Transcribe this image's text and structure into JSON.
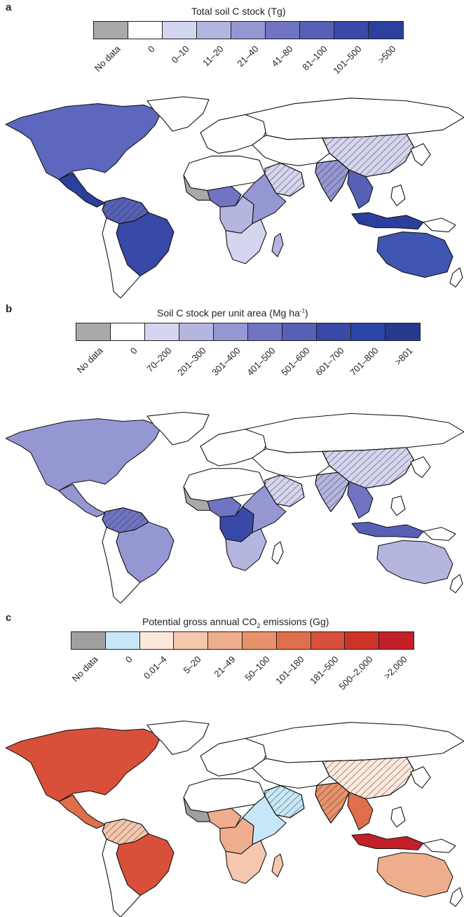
{
  "panels": [
    {
      "letter": "a",
      "title": "Total soil C stock (Tg)",
      "legend": {
        "labels": [
          "No data",
          "0",
          "0–10",
          "11–20",
          "21–40",
          "41–80",
          "81–100",
          "101–500",
          ">500"
        ],
        "colors": [
          "#a9a9a9",
          "#ffffff",
          "#d4d5ee",
          "#b4b6e0",
          "#9597d3",
          "#7074c3",
          "#5660b6",
          "#3949a8",
          "#2b3f9d"
        ]
      },
      "regions": {
        "north-america": "#5c67bd",
        "central-america": "#2b3f9d",
        "northern-south-america": "#5660b6",
        "brazil": "#3949a8",
        "west-africa": "#a9a9a9",
        "nigeria-region": "#7074c3",
        "central-africa": "#b4b6e0",
        "east-africa": "#9597d3",
        "madagascar": "#b4b6e0",
        "southern-africa": "#d4d5ee",
        "arabia": "#d4d5ee",
        "india": "#9597d3",
        "china": "#d4d5ee",
        "southeast-asia": "#5660b6",
        "indonesia": "#2b3f9d",
        "australia": "#3f55b0"
      }
    },
    {
      "letter": "b",
      "title": "Soil C stock per unit area (Mg ha",
      "title_sup": "-1",
      "title_end": ")",
      "legend": {
        "labels": [
          "No data",
          "0",
          "70–200",
          "201–300",
          "301–400",
          "401–500",
          "501–600",
          "601–700",
          "701–800",
          ">801"
        ],
        "colors": [
          "#a9a9a9",
          "#ffffff",
          "#d4d5ee",
          "#b4b6e0",
          "#9597d3",
          "#7074c3",
          "#5660b6",
          "#3949a8",
          "#2b46a6",
          "#253a8f"
        ]
      },
      "regions": {
        "north-america": "#9597d3",
        "central-america": "#9597d3",
        "northern-south-america": "#7074c3",
        "brazil": "#9597d3",
        "west-africa": "#a9a9a9",
        "nigeria-region": "#7074c3",
        "central-africa": "#3949a8",
        "east-africa": "#9597d3",
        "madagascar": "#ffffff",
        "southern-africa": "#b4b6e0",
        "arabia": "#d4d5ee",
        "india": "#b4b6e0",
        "china": "#d4d5ee",
        "southeast-asia": "#7074c3",
        "indonesia": "#5660b6",
        "australia": "#b4b6e0"
      }
    },
    {
      "letter": "c",
      "title": "Potential gross annual CO",
      "title_sub": "2",
      "title_end": " emissions (Gg)",
      "legend": {
        "labels": [
          "No data",
          "0",
          "0.01–4",
          "5–20",
          "21–49",
          "50–100",
          "101–180",
          "181–500",
          "500–2,000",
          ">2,000"
        ],
        "colors": [
          "#a0a0a0",
          "#c6e7f7",
          "#fde9dc",
          "#f5c7ae",
          "#eeae8d",
          "#e8926c",
          "#df6e4c",
          "#d9503a",
          "#cc3329",
          "#c4202a"
        ]
      },
      "regions": {
        "north-america": "#d9503a",
        "central-america": "#df6e4c",
        "northern-south-america": "#f5c7ae",
        "brazil": "#d9503a",
        "west-africa": "#a0a0a0",
        "nigeria-region": "#eeae8d",
        "central-africa": "#eeae8d",
        "east-africa": "#c6e7f7",
        "madagascar": "#f5c7ae",
        "southern-africa": "#f5c7ae",
        "arabia": "#c6e7f7",
        "india": "#e8926c",
        "china": "#fde9dc",
        "southeast-asia": "#df6e4c",
        "indonesia": "#c4202a",
        "australia": "#eeae8d"
      }
    }
  ]
}
